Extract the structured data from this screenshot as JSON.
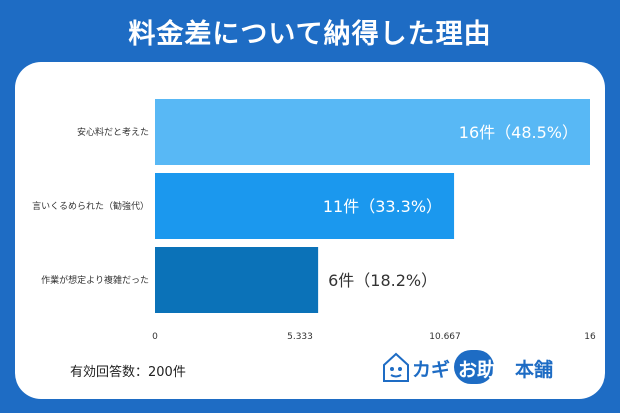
{
  "title": "料金差について納得した理由",
  "footer_note": "有効回答数：200件",
  "logo": {
    "kagi": "カギ",
    "otasuke": "お助け",
    "honpo": "本舗"
  },
  "colors": {
    "background": "#1e6cc4",
    "bar_1": "#58b8f5",
    "bar_2": "#1b98ee",
    "bar_3": "#0b72b8"
  },
  "chart_data": {
    "type": "bar",
    "orientation": "horizontal",
    "categories": [
      "安心料だと考えた",
      "言いくるめられた（勧強代）",
      "作業が想定より複雑だった"
    ],
    "values": [
      16,
      11,
      6
    ],
    "data_labels": [
      "16件（48.5%）",
      "11件（33.3%）",
      "6件（18.2%）"
    ],
    "x_ticks": [
      "0",
      "5.333",
      "10.667",
      "16"
    ],
    "xlim": [
      0,
      16
    ],
    "grid": false,
    "legend": "none"
  }
}
